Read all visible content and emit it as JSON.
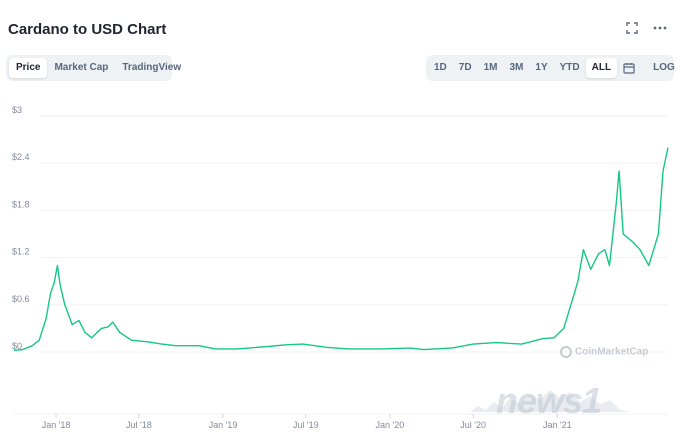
{
  "header": {
    "title": "Cardano to USD Chart",
    "expand_icon": "expand-icon",
    "more_icon": "more-icon"
  },
  "tabs": [
    {
      "label": "Price",
      "active": true
    },
    {
      "label": "Market Cap",
      "active": false
    },
    {
      "label": "TradingView",
      "active": false
    }
  ],
  "ranges": [
    {
      "label": "1D",
      "active": false
    },
    {
      "label": "7D",
      "active": false
    },
    {
      "label": "1M",
      "active": false
    },
    {
      "label": "3M",
      "active": false
    },
    {
      "label": "1Y",
      "active": false
    },
    {
      "label": "YTD",
      "active": false
    },
    {
      "label": "ALL",
      "active": true
    }
  ],
  "calendar_icon": "calendar-icon",
  "log_label": "LOG",
  "watermark": "CoinMarketCap",
  "photo_credit": "news1",
  "chart_data": {
    "type": "line",
    "title": "",
    "xlabel": "",
    "ylabel": "",
    "line_color": "#16c784",
    "y_ticks": [
      "$0",
      "$0.6",
      "$1.2",
      "$1.8",
      "$2.4",
      "$3"
    ],
    "ylim": [
      0,
      3
    ],
    "x_ticks": [
      "Jan '18",
      "Jul '18",
      "Jan '19",
      "Jul '19",
      "Jan '20",
      "Jul '20",
      "Jan '21"
    ],
    "series": [
      {
        "name": "",
        "x": [
          "2017-10-01",
          "2017-10-20",
          "2017-11-10",
          "2017-11-25",
          "2017-12-10",
          "2017-12-20",
          "2017-12-28",
          "2018-01-04",
          "2018-01-10",
          "2018-01-20",
          "2018-02-05",
          "2018-02-20",
          "2018-03-05",
          "2018-03-20",
          "2018-04-10",
          "2018-04-25",
          "2018-05-05",
          "2018-05-20",
          "2018-06-15",
          "2018-07-20",
          "2018-08-20",
          "2018-09-20",
          "2018-11-10",
          "2018-12-15",
          "2019-02-01",
          "2019-04-10",
          "2019-05-15",
          "2019-06-25",
          "2019-08-15",
          "2019-10-01",
          "2019-12-15",
          "2020-02-15",
          "2020-03-15",
          "2020-05-15",
          "2020-07-01",
          "2020-08-20",
          "2020-10-15",
          "2020-12-01",
          "2020-12-25",
          "2021-01-15",
          "2021-02-05",
          "2021-02-15",
          "2021-02-27",
          "2021-03-15",
          "2021-04-01",
          "2021-04-15",
          "2021-04-25",
          "2021-05-10",
          "2021-05-16",
          "2021-05-25",
          "2021-06-15",
          "2021-07-01",
          "2021-07-20",
          "2021-08-10",
          "2021-08-20",
          "2021-08-31"
        ],
        "values": [
          0.02,
          0.03,
          0.08,
          0.15,
          0.42,
          0.75,
          0.88,
          1.1,
          0.85,
          0.6,
          0.35,
          0.4,
          0.25,
          0.18,
          0.3,
          0.32,
          0.38,
          0.25,
          0.15,
          0.13,
          0.1,
          0.08,
          0.08,
          0.04,
          0.04,
          0.07,
          0.09,
          0.1,
          0.06,
          0.04,
          0.04,
          0.05,
          0.03,
          0.05,
          0.1,
          0.12,
          0.1,
          0.17,
          0.18,
          0.3,
          0.7,
          0.9,
          1.3,
          1.05,
          1.25,
          1.3,
          1.1,
          1.9,
          2.3,
          1.5,
          1.4,
          1.3,
          1.1,
          1.5,
          2.3,
          2.6
        ]
      }
    ]
  }
}
